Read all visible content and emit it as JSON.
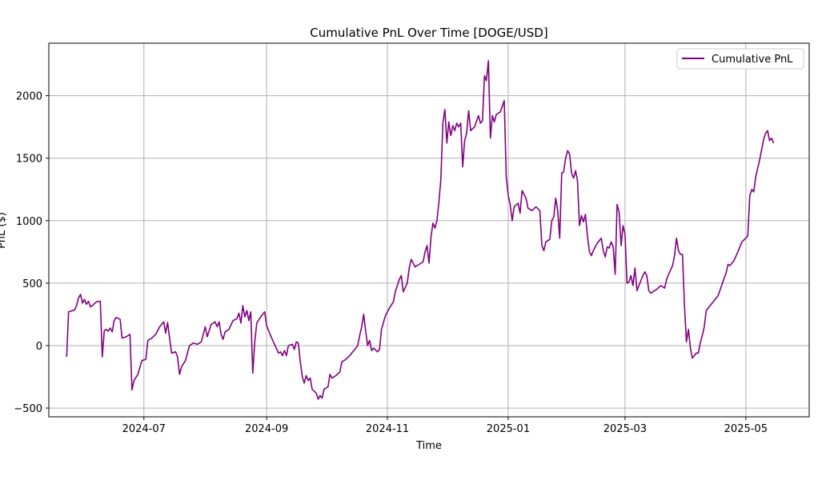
{
  "chart_data": {
    "type": "line",
    "title": "Cumulative PnL Over Time [DOGE/USD]",
    "xlabel": "Time",
    "ylabel": "PnL ($)",
    "xlim": [
      "2024-05-14",
      "2025-06-02"
    ],
    "ylim": [
      -570,
      2420
    ],
    "grid": true,
    "legend_position": "top-right",
    "x_ticks": [
      "2024-07",
      "2024-09",
      "2024-11",
      "2025-01",
      "2025-03",
      "2025-05"
    ],
    "y_ticks": [
      -500,
      0,
      500,
      1000,
      1500,
      2000
    ],
    "series": [
      {
        "name": "Cumulative PnL",
        "color": "#800080",
        "points": [
          [
            "2024-05-23",
            -90
          ],
          [
            "2024-05-24",
            270
          ],
          [
            "2024-05-27",
            285
          ],
          [
            "2024-05-28",
            320
          ],
          [
            "2024-05-29",
            380
          ],
          [
            "2024-05-30",
            410
          ],
          [
            "2024-05-31",
            340
          ],
          [
            "2024-06-01",
            370
          ],
          [
            "2024-06-02",
            330
          ],
          [
            "2024-06-03",
            355
          ],
          [
            "2024-06-04",
            310
          ],
          [
            "2024-06-05",
            320
          ],
          [
            "2024-06-07",
            350
          ],
          [
            "2024-06-09",
            355
          ],
          [
            "2024-06-10",
            -90
          ],
          [
            "2024-06-11",
            120
          ],
          [
            "2024-06-12",
            130
          ],
          [
            "2024-06-13",
            115
          ],
          [
            "2024-06-14",
            140
          ],
          [
            "2024-06-15",
            110
          ],
          [
            "2024-06-16",
            200
          ],
          [
            "2024-06-17",
            225
          ],
          [
            "2024-06-19",
            210
          ],
          [
            "2024-06-20",
            60
          ],
          [
            "2024-06-22",
            70
          ],
          [
            "2024-06-24",
            90
          ],
          [
            "2024-06-25",
            -355
          ],
          [
            "2024-06-26",
            -280
          ],
          [
            "2024-06-28",
            -230
          ],
          [
            "2024-06-30",
            -120
          ],
          [
            "2024-07-02",
            -110
          ],
          [
            "2024-07-03",
            40
          ],
          [
            "2024-07-05",
            60
          ],
          [
            "2024-07-07",
            90
          ],
          [
            "2024-07-09",
            150
          ],
          [
            "2024-07-11",
            190
          ],
          [
            "2024-07-12",
            100
          ],
          [
            "2024-07-13",
            185
          ],
          [
            "2024-07-14",
            60
          ],
          [
            "2024-07-15",
            -60
          ],
          [
            "2024-07-17",
            -50
          ],
          [
            "2024-07-18",
            -90
          ],
          [
            "2024-07-19",
            -230
          ],
          [
            "2024-07-20",
            -170
          ],
          [
            "2024-07-22",
            -120
          ],
          [
            "2024-07-24",
            0
          ],
          [
            "2024-07-26",
            20
          ],
          [
            "2024-07-28",
            10
          ],
          [
            "2024-07-30",
            30
          ],
          [
            "2024-08-01",
            150
          ],
          [
            "2024-08-02",
            70
          ],
          [
            "2024-08-04",
            170
          ],
          [
            "2024-08-06",
            190
          ],
          [
            "2024-08-07",
            150
          ],
          [
            "2024-08-08",
            190
          ],
          [
            "2024-08-09",
            90
          ],
          [
            "2024-08-10",
            50
          ],
          [
            "2024-08-11",
            110
          ],
          [
            "2024-08-13",
            130
          ],
          [
            "2024-08-15",
            200
          ],
          [
            "2024-08-17",
            215
          ],
          [
            "2024-08-18",
            260
          ],
          [
            "2024-08-19",
            180
          ],
          [
            "2024-08-20",
            320
          ],
          [
            "2024-08-21",
            230
          ],
          [
            "2024-08-22",
            280
          ],
          [
            "2024-08-23",
            200
          ],
          [
            "2024-08-24",
            270
          ],
          [
            "2024-08-25",
            -220
          ],
          [
            "2024-08-26",
            30
          ],
          [
            "2024-08-27",
            180
          ],
          [
            "2024-08-29",
            230
          ],
          [
            "2024-08-31",
            270
          ],
          [
            "2024-09-01",
            160
          ],
          [
            "2024-09-03",
            80
          ],
          [
            "2024-09-05",
            10
          ],
          [
            "2024-09-07",
            -60
          ],
          [
            "2024-09-08",
            -50
          ],
          [
            "2024-09-09",
            -80
          ],
          [
            "2024-09-10",
            -40
          ],
          [
            "2024-09-11",
            -80
          ],
          [
            "2024-09-12",
            0
          ],
          [
            "2024-09-14",
            10
          ],
          [
            "2024-09-15",
            -30
          ],
          [
            "2024-09-16",
            30
          ],
          [
            "2024-09-17",
            20
          ],
          [
            "2024-09-18",
            -130
          ],
          [
            "2024-09-19",
            -250
          ],
          [
            "2024-09-20",
            -300
          ],
          [
            "2024-09-21",
            -240
          ],
          [
            "2024-09-22",
            -280
          ],
          [
            "2024-09-23",
            -260
          ],
          [
            "2024-09-24",
            -350
          ],
          [
            "2024-09-26",
            -380
          ],
          [
            "2024-09-27",
            -430
          ],
          [
            "2024-09-28",
            -400
          ],
          [
            "2024-09-29",
            -420
          ],
          [
            "2024-09-30",
            -350
          ],
          [
            "2024-10-02",
            -330
          ],
          [
            "2024-10-03",
            -230
          ],
          [
            "2024-10-04",
            -260
          ],
          [
            "2024-10-06",
            -240
          ],
          [
            "2024-10-08",
            -210
          ],
          [
            "2024-10-09",
            -130
          ],
          [
            "2024-10-11",
            -110
          ],
          [
            "2024-10-13",
            -80
          ],
          [
            "2024-10-15",
            -40
          ],
          [
            "2024-10-17",
            0
          ],
          [
            "2024-10-18",
            80
          ],
          [
            "2024-10-19",
            150
          ],
          [
            "2024-10-20",
            250
          ],
          [
            "2024-10-21",
            120
          ],
          [
            "2024-10-22",
            0
          ],
          [
            "2024-10-23",
            40
          ],
          [
            "2024-10-24",
            -40
          ],
          [
            "2024-10-25",
            -20
          ],
          [
            "2024-10-27",
            -50
          ],
          [
            "2024-10-28",
            -30
          ],
          [
            "2024-10-29",
            130
          ],
          [
            "2024-10-31",
            240
          ],
          [
            "2024-11-02",
            300
          ],
          [
            "2024-11-04",
            350
          ],
          [
            "2024-11-05",
            430
          ],
          [
            "2024-11-07",
            530
          ],
          [
            "2024-11-08",
            560
          ],
          [
            "2024-11-09",
            430
          ],
          [
            "2024-11-11",
            500
          ],
          [
            "2024-11-12",
            620
          ],
          [
            "2024-11-13",
            690
          ],
          [
            "2024-11-15",
            630
          ],
          [
            "2024-11-17",
            650
          ],
          [
            "2024-11-19",
            670
          ],
          [
            "2024-11-20",
            750
          ],
          [
            "2024-11-21",
            800
          ],
          [
            "2024-11-22",
            660
          ],
          [
            "2024-11-23",
            870
          ],
          [
            "2024-11-24",
            980
          ],
          [
            "2024-11-25",
            940
          ],
          [
            "2024-11-26",
            1000
          ],
          [
            "2024-11-27",
            1150
          ],
          [
            "2024-11-28",
            1330
          ],
          [
            "2024-11-29",
            1780
          ],
          [
            "2024-11-30",
            1890
          ],
          [
            "2024-12-01",
            1620
          ],
          [
            "2024-12-02",
            1790
          ],
          [
            "2024-12-03",
            1680
          ],
          [
            "2024-12-04",
            1760
          ],
          [
            "2024-12-05",
            1720
          ],
          [
            "2024-12-06",
            1780
          ],
          [
            "2024-12-07",
            1750
          ],
          [
            "2024-12-08",
            1780
          ],
          [
            "2024-12-09",
            1430
          ],
          [
            "2024-12-10",
            1640
          ],
          [
            "2024-12-11",
            1700
          ],
          [
            "2024-12-12",
            1880
          ],
          [
            "2024-12-13",
            1720
          ],
          [
            "2024-12-15",
            1750
          ],
          [
            "2024-12-17",
            1840
          ],
          [
            "2024-12-18",
            1780
          ],
          [
            "2024-12-19",
            1800
          ],
          [
            "2024-12-20",
            2160
          ],
          [
            "2024-12-21",
            2120
          ],
          [
            "2024-12-22",
            2280
          ],
          [
            "2024-12-23",
            1660
          ],
          [
            "2024-12-24",
            1840
          ],
          [
            "2024-12-25",
            1790
          ],
          [
            "2024-12-26",
            1850
          ],
          [
            "2024-12-28",
            1870
          ],
          [
            "2024-12-30",
            1960
          ],
          [
            "2024-12-31",
            1350
          ],
          [
            "2025-01-01",
            1200
          ],
          [
            "2025-01-02",
            1130
          ],
          [
            "2025-01-03",
            1000
          ],
          [
            "2025-01-04",
            1110
          ],
          [
            "2025-01-06",
            1140
          ],
          [
            "2025-01-07",
            1060
          ],
          [
            "2025-01-08",
            1240
          ],
          [
            "2025-01-10",
            1180
          ],
          [
            "2025-01-11",
            1100
          ],
          [
            "2025-01-13",
            1080
          ],
          [
            "2025-01-15",
            1110
          ],
          [
            "2025-01-17",
            1080
          ],
          [
            "2025-01-18",
            800
          ],
          [
            "2025-01-19",
            760
          ],
          [
            "2025-01-20",
            830
          ],
          [
            "2025-01-22",
            850
          ],
          [
            "2025-01-23",
            1000
          ],
          [
            "2025-01-24",
            1030
          ],
          [
            "2025-01-25",
            1180
          ],
          [
            "2025-01-26",
            1080
          ],
          [
            "2025-01-27",
            860
          ],
          [
            "2025-01-28",
            1380
          ],
          [
            "2025-01-29",
            1390
          ],
          [
            "2025-01-30",
            1500
          ],
          [
            "2025-01-31",
            1560
          ],
          [
            "2025-02-01",
            1530
          ],
          [
            "2025-02-02",
            1380
          ],
          [
            "2025-02-03",
            1340
          ],
          [
            "2025-02-04",
            1400
          ],
          [
            "2025-02-05",
            1320
          ],
          [
            "2025-02-06",
            960
          ],
          [
            "2025-02-07",
            1040
          ],
          [
            "2025-02-08",
            990
          ],
          [
            "2025-02-09",
            1050
          ],
          [
            "2025-02-10",
            880
          ],
          [
            "2025-02-11",
            750
          ],
          [
            "2025-02-12",
            720
          ],
          [
            "2025-02-13",
            760
          ],
          [
            "2025-02-15",
            820
          ],
          [
            "2025-02-17",
            860
          ],
          [
            "2025-02-18",
            760
          ],
          [
            "2025-02-19",
            710
          ],
          [
            "2025-02-20",
            790
          ],
          [
            "2025-02-21",
            780
          ],
          [
            "2025-02-22",
            830
          ],
          [
            "2025-02-23",
            790
          ],
          [
            "2025-02-24",
            570
          ],
          [
            "2025-02-25",
            1130
          ],
          [
            "2025-02-26",
            1070
          ],
          [
            "2025-02-27",
            800
          ],
          [
            "2025-02-28",
            960
          ],
          [
            "2025-03-01",
            890
          ],
          [
            "2025-03-02",
            500
          ],
          [
            "2025-03-03",
            510
          ],
          [
            "2025-03-04",
            560
          ],
          [
            "2025-03-05",
            480
          ],
          [
            "2025-03-06",
            620
          ],
          [
            "2025-03-07",
            440
          ],
          [
            "2025-03-08",
            480
          ],
          [
            "2025-03-09",
            520
          ],
          [
            "2025-03-10",
            560
          ],
          [
            "2025-03-11",
            590
          ],
          [
            "2025-03-12",
            560
          ],
          [
            "2025-03-13",
            440
          ],
          [
            "2025-03-14",
            420
          ],
          [
            "2025-03-15",
            430
          ],
          [
            "2025-03-17",
            450
          ],
          [
            "2025-03-19",
            480
          ],
          [
            "2025-03-21",
            460
          ],
          [
            "2025-03-22",
            530
          ],
          [
            "2025-03-23",
            570
          ],
          [
            "2025-03-25",
            640
          ],
          [
            "2025-03-26",
            720
          ],
          [
            "2025-03-27",
            860
          ],
          [
            "2025-03-28",
            760
          ],
          [
            "2025-03-29",
            730
          ],
          [
            "2025-03-30",
            730
          ],
          [
            "2025-03-31",
            330
          ],
          [
            "2025-04-01",
            30
          ],
          [
            "2025-04-02",
            130
          ],
          [
            "2025-04-03",
            -20
          ],
          [
            "2025-04-04",
            -100
          ],
          [
            "2025-04-05",
            -80
          ],
          [
            "2025-04-06",
            -60
          ],
          [
            "2025-04-07",
            -60
          ],
          [
            "2025-04-08",
            20
          ],
          [
            "2025-04-09",
            80
          ],
          [
            "2025-04-10",
            150
          ],
          [
            "2025-04-11",
            280
          ],
          [
            "2025-04-12",
            300
          ],
          [
            "2025-04-14",
            340
          ],
          [
            "2025-04-15",
            360
          ],
          [
            "2025-04-17",
            400
          ],
          [
            "2025-04-19",
            490
          ],
          [
            "2025-04-21",
            580
          ],
          [
            "2025-04-22",
            650
          ],
          [
            "2025-04-23",
            640
          ],
          [
            "2025-04-25",
            680
          ],
          [
            "2025-04-27",
            750
          ],
          [
            "2025-04-29",
            830
          ],
          [
            "2025-05-01",
            860
          ],
          [
            "2025-05-02",
            880
          ],
          [
            "2025-05-03",
            1200
          ],
          [
            "2025-05-04",
            1250
          ],
          [
            "2025-05-05",
            1230
          ],
          [
            "2025-05-06",
            1350
          ],
          [
            "2025-05-07",
            1420
          ],
          [
            "2025-05-08",
            1490
          ],
          [
            "2025-05-09",
            1570
          ],
          [
            "2025-05-10",
            1650
          ],
          [
            "2025-05-11",
            1700
          ],
          [
            "2025-05-12",
            1720
          ],
          [
            "2025-05-13",
            1640
          ],
          [
            "2025-05-14",
            1660
          ],
          [
            "2025-05-15",
            1620
          ]
        ]
      }
    ]
  }
}
